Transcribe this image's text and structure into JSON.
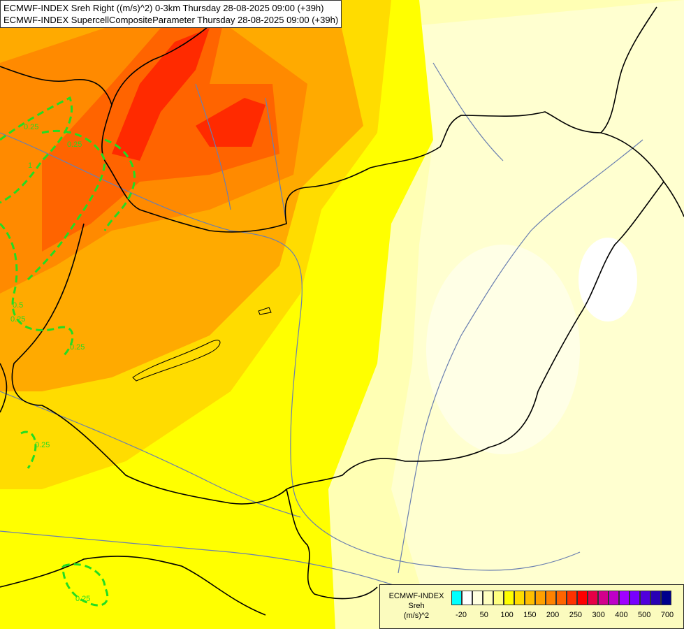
{
  "header": {
    "line1": "ECMWF-INDEX Sreh Right ((m/s)^2) 0-3km Thursday 28-08-2025 09:00 (+39h)",
    "line2": "ECMWF-INDEX SupercellCompositeParameter Thursday 28-08-2025 09:00 (+39h)"
  },
  "contour_labels": [
    "0.25",
    "0.25",
    "0.25",
    "0.5",
    "0.25",
    "0.25",
    "0.25",
    "1"
  ],
  "legend": {
    "title": [
      "ECMWF-INDEX",
      "Sreh",
      "(m/s)^2"
    ],
    "swatch_colors": [
      "#00ffff",
      "#ffffff",
      "#ffffe0",
      "#ffffc0",
      "#ffff80",
      "#ffff00",
      "#ffdc00",
      "#ffbe00",
      "#ffa000",
      "#ff8200",
      "#ff6400",
      "#ff3200",
      "#ff0000",
      "#e60046",
      "#d2008c",
      "#be00c8",
      "#a000ff",
      "#7800ff",
      "#5000dc",
      "#2800b4",
      "#00008c"
    ],
    "ticks": [
      "-20",
      "50",
      "100",
      "150",
      "200",
      "250",
      "300",
      "400",
      "500",
      "700"
    ]
  },
  "colors": {
    "background": "#ffffb4",
    "pale": "#ffffe0",
    "yellow": "#ffff00",
    "gold": "#ffdc00",
    "orange": "#ffa000",
    "dark_orange": "#ff8200",
    "red_orange": "#ff3c00",
    "red": "#ff1e00",
    "contour": "#22dd22",
    "border": "#000000",
    "river": "#6a7fb0"
  }
}
